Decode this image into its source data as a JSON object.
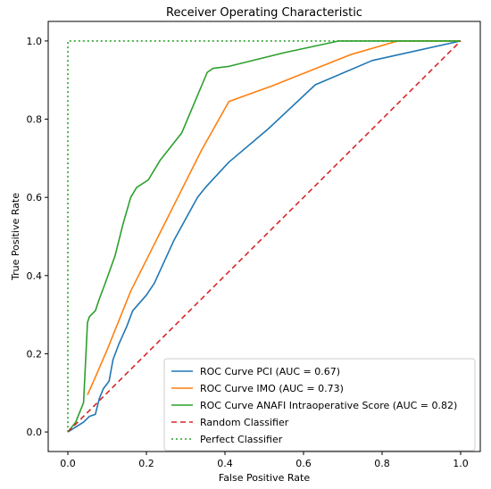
{
  "chart_data": {
    "type": "line",
    "title": "Receiver Operating Characteristic",
    "xlabel": "False Positive Rate",
    "ylabel": "True Positive Rate",
    "xlim": [
      -0.05,
      1.05
    ],
    "ylim": [
      -0.05,
      1.05
    ],
    "xticks": [
      "0.0",
      "0.2",
      "0.4",
      "0.6",
      "0.8",
      "1.0"
    ],
    "yticks": [
      "0.0",
      "0.2",
      "0.4",
      "0.6",
      "0.8",
      "1.0"
    ],
    "grid": false,
    "legend_position": "lower-right",
    "series": [
      {
        "name": "ROC Curve PCI (AUC = 0.67)",
        "color": "#1f77b4",
        "style": "solid",
        "x": [
          0,
          0.04,
          0.055,
          0.07,
          0.08,
          0.09,
          0.105,
          0.115,
          0.13,
          0.15,
          0.165,
          0.2,
          0.22,
          0.27,
          0.33,
          0.35,
          0.41,
          0.51,
          0.63,
          0.775,
          1.0
        ],
        "y": [
          0,
          0.025,
          0.04,
          0.045,
          0.085,
          0.11,
          0.13,
          0.185,
          0.225,
          0.27,
          0.31,
          0.35,
          0.38,
          0.49,
          0.6,
          0.625,
          0.69,
          0.775,
          0.888,
          0.95,
          1.0
        ]
      },
      {
        "name": "ROC Curve IMO (AUC = 0.73)",
        "color": "#ff7f0e",
        "style": "solid",
        "x": [
          0.05,
          0.07,
          0.1,
          0.16,
          0.22,
          0.28,
          0.34,
          0.41,
          0.52,
          0.62,
          0.72,
          0.84,
          1.0
        ],
        "y": [
          0.095,
          0.14,
          0.21,
          0.36,
          0.48,
          0.6,
          0.72,
          0.845,
          0.885,
          0.925,
          0.965,
          1.0,
          1.0
        ]
      },
      {
        "name": "ROC Curve ANAFI  Intraoperative Score (AUC = 0.82)",
        "color": "#2ca02c",
        "style": "solid",
        "x": [
          0,
          0.02,
          0.04,
          0.05,
          0.055,
          0.07,
          0.08,
          0.095,
          0.12,
          0.14,
          0.16,
          0.175,
          0.205,
          0.235,
          0.29,
          0.355,
          0.37,
          0.41,
          0.55,
          0.69,
          1.0
        ],
        "y": [
          0,
          0.025,
          0.075,
          0.28,
          0.295,
          0.31,
          0.34,
          0.38,
          0.45,
          0.53,
          0.6,
          0.625,
          0.645,
          0.695,
          0.765,
          0.92,
          0.93,
          0.935,
          0.97,
          1.0,
          1.0
        ]
      },
      {
        "name": "Random Classifier",
        "color": "#d62728",
        "style": "dashed",
        "x": [
          0,
          1
        ],
        "y": [
          0,
          1
        ]
      },
      {
        "name": "Perfect Classifier",
        "color": "#2ca02c",
        "style": "dotted",
        "x": [
          0,
          0,
          1
        ],
        "y": [
          0,
          1,
          1
        ]
      }
    ]
  }
}
